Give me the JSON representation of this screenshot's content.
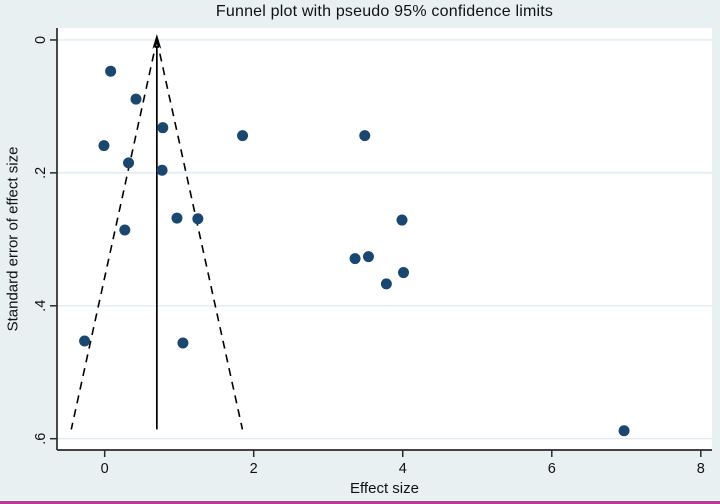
{
  "figure": {
    "background_color": "#e9f0f2",
    "plot_background_color": "#ffffff",
    "gridline_color": "#dbe7f0",
    "axis_color": "#2a2a2a",
    "bottom_border_color": "#b83a9c"
  },
  "chart_data": {
    "type": "scatter",
    "title": "Funnel plot with pseudo 95% confidence limits",
    "xlabel": "Effect size",
    "ylabel": "Standard error of effect size",
    "grid": "horizontal",
    "legend": "none",
    "x_axis": {
      "min": -0.64,
      "max": 8.15,
      "ticks": [
        0,
        2,
        4,
        6,
        8
      ],
      "tick_labels": [
        "0",
        "2",
        "4",
        "6",
        "8"
      ]
    },
    "y_axis": {
      "min": -0.018,
      "max": 0.617,
      "inverted": true,
      "ticks": [
        0,
        0.2,
        0.4,
        0.6
      ],
      "tick_labels": [
        "0",
        ".2",
        ".4",
        ".6"
      ]
    },
    "marker": {
      "shape": "circle",
      "color": "#1a476f",
      "radius_px": 5.5
    },
    "points": [
      {
        "x": 0.08,
        "se": 0.047
      },
      {
        "x": 0.42,
        "se": 0.089
      },
      {
        "x": 0.78,
        "se": 0.132
      },
      {
        "x": 1.85,
        "se": 0.144
      },
      {
        "x": 3.49,
        "se": 0.144
      },
      {
        "x": -0.01,
        "se": 0.159
      },
      {
        "x": 0.32,
        "se": 0.185
      },
      {
        "x": 0.77,
        "se": 0.196
      },
      {
        "x": 0.97,
        "se": 0.268
      },
      {
        "x": 1.25,
        "se": 0.269
      },
      {
        "x": 3.99,
        "se": 0.271
      },
      {
        "x": 0.27,
        "se": 0.286
      },
      {
        "x": 3.54,
        "se": 0.326
      },
      {
        "x": 3.36,
        "se": 0.329
      },
      {
        "x": 4.01,
        "se": 0.35
      },
      {
        "x": 3.78,
        "se": 0.367
      },
      {
        "x": -0.27,
        "se": 0.453
      },
      {
        "x": 1.05,
        "se": 0.456
      },
      {
        "x": 6.97,
        "se": 0.588
      }
    ],
    "pseudo_confidence_limits": {
      "center_effect": 0.7,
      "z": 1.96,
      "se_start": 0,
      "se_end": 0.586,
      "line_style": "dashed",
      "line_color": "#000000"
    },
    "center_line": {
      "x": 0.7,
      "style": "solid",
      "arrow": "up",
      "color": "#000000"
    }
  }
}
